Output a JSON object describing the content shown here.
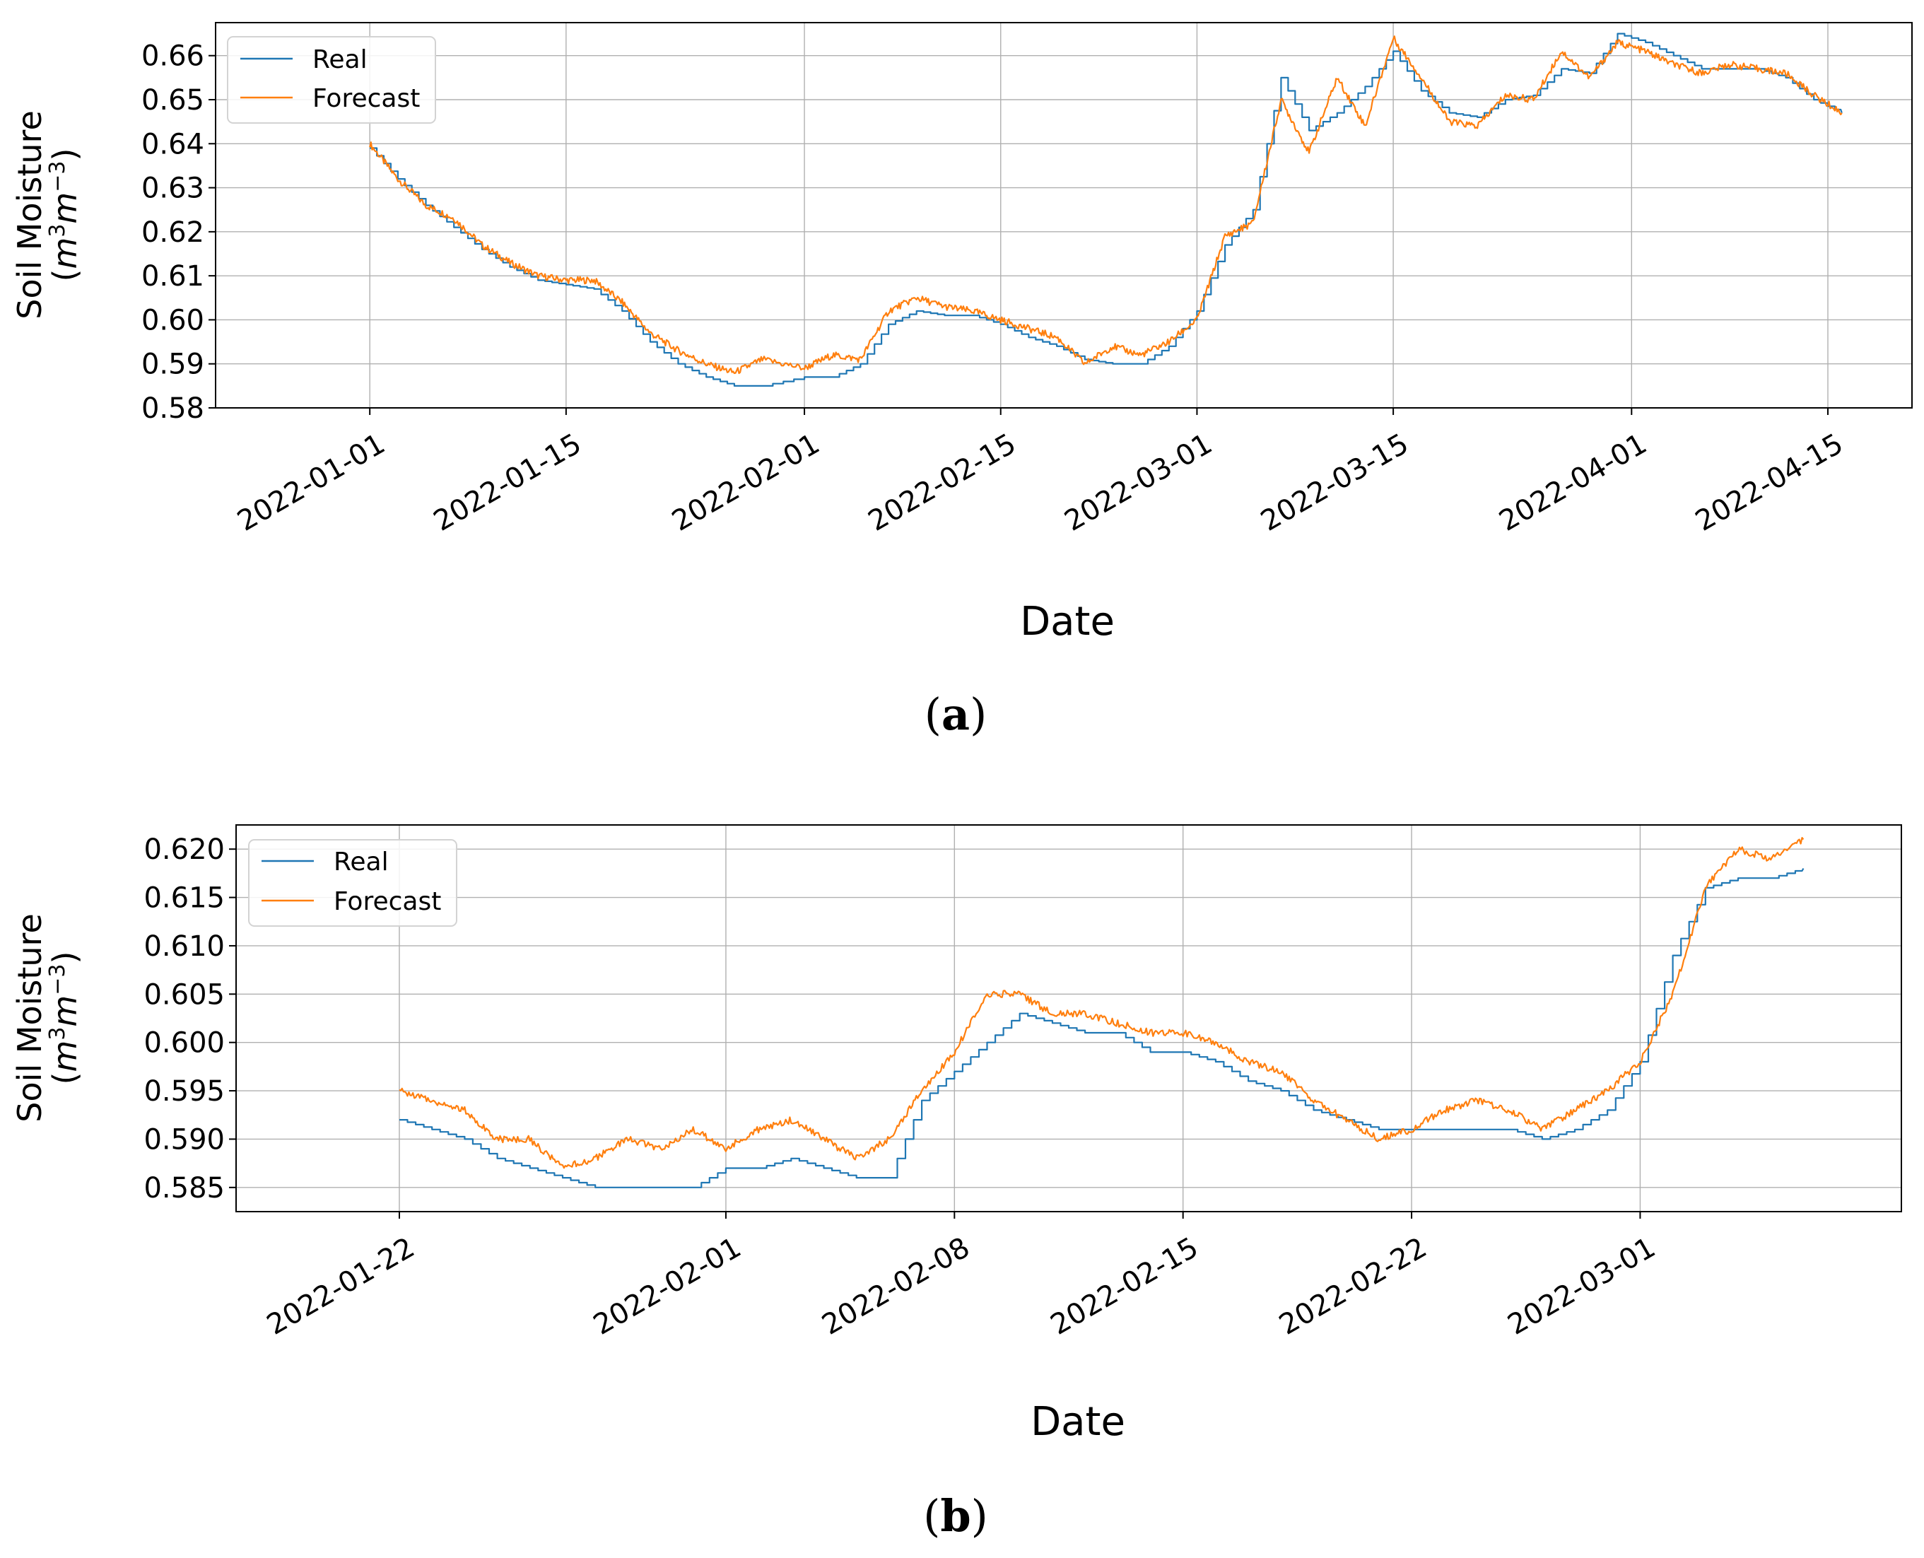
{
  "chart_data": [
    {
      "type": "line",
      "panel_label": "a",
      "xlabel": "Date",
      "ylabel": "Soil Moisture",
      "ylabel_unit": "(m3m−3)",
      "xlim": [
        "2021-12-21",
        "2022-04-21"
      ],
      "ylim": [
        0.58,
        0.6675
      ],
      "x_ticks": [
        "2022-01-01",
        "2022-01-15",
        "2022-02-01",
        "2022-02-15",
        "2022-03-01",
        "2022-03-15",
        "2022-04-01",
        "2022-04-15"
      ],
      "y_ticks": [
        "0.58",
        "0.59",
        "0.60",
        "0.61",
        "0.62",
        "0.63",
        "0.64",
        "0.65",
        "0.66"
      ],
      "legend_position": "upper-left",
      "grid": true,
      "series": [
        {
          "name": "Real",
          "color": "#1f77b4",
          "points": [
            [
              "2022-01-01",
              0.639
            ],
            [
              "2022-01-03",
              0.632
            ],
            [
              "2022-01-05",
              0.626
            ],
            [
              "2022-01-07",
              0.621
            ],
            [
              "2022-01-09",
              0.616
            ],
            [
              "2022-01-11",
              0.612
            ],
            [
              "2022-01-13",
              0.609
            ],
            [
              "2022-01-15",
              0.608
            ],
            [
              "2022-01-17",
              0.607
            ],
            [
              "2022-01-19",
              0.602
            ],
            [
              "2022-01-21",
              0.595
            ],
            [
              "2022-01-23",
              0.59
            ],
            [
              "2022-01-25",
              0.587
            ],
            [
              "2022-01-27",
              0.585
            ],
            [
              "2022-01-29",
              0.585
            ],
            [
              "2022-02-01",
              0.587
            ],
            [
              "2022-02-03",
              0.587
            ],
            [
              "2022-02-05",
              0.59
            ],
            [
              "2022-02-07",
              0.599
            ],
            [
              "2022-02-09",
              0.602
            ],
            [
              "2022-02-11",
              0.601
            ],
            [
              "2022-02-13",
              0.601
            ],
            [
              "2022-02-15",
              0.599
            ],
            [
              "2022-02-17",
              0.596
            ],
            [
              "2022-02-19",
              0.594
            ],
            [
              "2022-02-21",
              0.591
            ],
            [
              "2022-02-23",
              0.59
            ],
            [
              "2022-02-25",
              0.59
            ],
            [
              "2022-02-27",
              0.594
            ],
            [
              "2022-03-01",
              0.602
            ],
            [
              "2022-03-03",
              0.617
            ],
            [
              "2022-03-05",
              0.625
            ],
            [
              "2022-03-07",
              0.655
            ],
            [
              "2022-03-09",
              0.643
            ],
            [
              "2022-03-11",
              0.647
            ],
            [
              "2022-03-13",
              0.653
            ],
            [
              "2022-03-15",
              0.661
            ],
            [
              "2022-03-17",
              0.652
            ],
            [
              "2022-03-19",
              0.647
            ],
            [
              "2022-03-21",
              0.646
            ],
            [
              "2022-03-23",
              0.65
            ],
            [
              "2022-03-25",
              0.651
            ],
            [
              "2022-03-27",
              0.657
            ],
            [
              "2022-03-29",
              0.656
            ],
            [
              "2022-03-31",
              0.665
            ],
            [
              "2022-04-02",
              0.663
            ],
            [
              "2022-04-04",
              0.66
            ],
            [
              "2022-04-06",
              0.657
            ],
            [
              "2022-04-08",
              0.657
            ],
            [
              "2022-04-10",
              0.657
            ],
            [
              "2022-04-12",
              0.655
            ],
            [
              "2022-04-14",
              0.65
            ],
            [
              "2022-04-16",
              0.647
            ]
          ]
        },
        {
          "name": "Forecast",
          "color": "#ff7f0e",
          "points": [
            [
              "2022-01-01",
              0.64
            ],
            [
              "2022-01-03",
              0.632
            ],
            [
              "2022-01-05",
              0.626
            ],
            [
              "2022-01-07",
              0.623
            ],
            [
              "2022-01-09",
              0.617
            ],
            [
              "2022-01-11",
              0.613
            ],
            [
              "2022-01-13",
              0.61
            ],
            [
              "2022-01-15",
              0.609
            ],
            [
              "2022-01-17",
              0.609
            ],
            [
              "2022-01-19",
              0.604
            ],
            [
              "2022-01-21",
              0.597
            ],
            [
              "2022-01-23",
              0.593
            ],
            [
              "2022-01-25",
              0.59
            ],
            [
              "2022-01-27",
              0.588
            ],
            [
              "2022-01-29",
              0.591
            ],
            [
              "2022-02-01",
              0.589
            ],
            [
              "2022-02-03",
              0.592
            ],
            [
              "2022-02-05",
              0.591
            ],
            [
              "2022-02-07",
              0.602
            ],
            [
              "2022-02-09",
              0.605
            ],
            [
              "2022-02-11",
              0.603
            ],
            [
              "2022-02-13",
              0.602
            ],
            [
              "2022-02-15",
              0.6
            ],
            [
              "2022-02-17",
              0.598
            ],
            [
              "2022-02-19",
              0.596
            ],
            [
              "2022-02-21",
              0.59
            ],
            [
              "2022-02-23",
              0.594
            ],
            [
              "2022-02-25",
              0.592
            ],
            [
              "2022-02-27",
              0.595
            ],
            [
              "2022-03-01",
              0.6
            ],
            [
              "2022-03-03",
              0.619
            ],
            [
              "2022-03-05",
              0.622
            ],
            [
              "2022-03-07",
              0.65
            ],
            [
              "2022-03-09",
              0.638
            ],
            [
              "2022-03-11",
              0.655
            ],
            [
              "2022-03-13",
              0.644
            ],
            [
              "2022-03-15",
              0.664
            ],
            [
              "2022-03-17",
              0.655
            ],
            [
              "2022-03-19",
              0.645
            ],
            [
              "2022-03-21",
              0.644
            ],
            [
              "2022-03-23",
              0.651
            ],
            [
              "2022-03-25",
              0.65
            ],
            [
              "2022-03-27",
              0.661
            ],
            [
              "2022-03-29",
              0.655
            ],
            [
              "2022-03-31",
              0.663
            ],
            [
              "2022-04-02",
              0.661
            ],
            [
              "2022-04-04",
              0.658
            ],
            [
              "2022-04-06",
              0.656
            ],
            [
              "2022-04-08",
              0.658
            ],
            [
              "2022-04-10",
              0.657
            ],
            [
              "2022-04-12",
              0.656
            ],
            [
              "2022-04-14",
              0.651
            ],
            [
              "2022-04-16",
              0.647
            ]
          ]
        }
      ]
    },
    {
      "type": "line",
      "panel_label": "b",
      "xlabel": "Date",
      "ylabel": "Soil Moisture",
      "ylabel_unit": "(m3m−3)",
      "xlim": [
        "2022-01-17",
        "2022-03-09"
      ],
      "ylim": [
        0.5825,
        0.6225
      ],
      "x_ticks": [
        "2022-01-22",
        "2022-02-01",
        "2022-02-08",
        "2022-02-15",
        "2022-02-22",
        "2022-03-01"
      ],
      "y_ticks": [
        "0.585",
        "0.590",
        "0.595",
        "0.600",
        "0.605",
        "0.610",
        "0.615",
        "0.620"
      ],
      "legend_position": "upper-left",
      "grid": true,
      "series": [
        {
          "name": "Real",
          "color": "#1f77b4",
          "points": [
            [
              "2022-01-22",
              0.592
            ],
            [
              "2022-01-23",
              0.591
            ],
            [
              "2022-01-24",
              0.59
            ],
            [
              "2022-01-25",
              0.588
            ],
            [
              "2022-01-26",
              0.587
            ],
            [
              "2022-01-27",
              0.586
            ],
            [
              "2022-01-28",
              0.585
            ],
            [
              "2022-01-29",
              0.585
            ],
            [
              "2022-01-30",
              0.585
            ],
            [
              "2022-01-31",
              0.585
            ],
            [
              "2022-02-01",
              0.587
            ],
            [
              "2022-02-02",
              0.587
            ],
            [
              "2022-02-03",
              0.588
            ],
            [
              "2022-02-04",
              0.587
            ],
            [
              "2022-02-05",
              0.586
            ],
            [
              "2022-02-06",
              0.586
            ],
            [
              "2022-02-07",
              0.594
            ],
            [
              "2022-02-08",
              0.597
            ],
            [
              "2022-02-09",
              0.6
            ],
            [
              "2022-02-10",
              0.603
            ],
            [
              "2022-02-11",
              0.602
            ],
            [
              "2022-02-12",
              0.601
            ],
            [
              "2022-02-13",
              0.601
            ],
            [
              "2022-02-14",
              0.599
            ],
            [
              "2022-02-15",
              0.599
            ],
            [
              "2022-02-16",
              0.598
            ],
            [
              "2022-02-17",
              0.596
            ],
            [
              "2022-02-18",
              0.595
            ],
            [
              "2022-02-19",
              0.593
            ],
            [
              "2022-02-20",
              0.592
            ],
            [
              "2022-02-21",
              0.591
            ],
            [
              "2022-02-22",
              0.591
            ],
            [
              "2022-02-23",
              0.591
            ],
            [
              "2022-02-24",
              0.591
            ],
            [
              "2022-02-25",
              0.591
            ],
            [
              "2022-02-26",
              0.59
            ],
            [
              "2022-02-27",
              0.591
            ],
            [
              "2022-02-28",
              0.593
            ],
            [
              "2022-03-01",
              0.598
            ],
            [
              "2022-03-02",
              0.609
            ],
            [
              "2022-03-03",
              0.616
            ],
            [
              "2022-03-04",
              0.617
            ],
            [
              "2022-03-05",
              0.617
            ],
            [
              "2022-03-06",
              0.618
            ]
          ]
        },
        {
          "name": "Forecast",
          "color": "#ff7f0e",
          "points": [
            [
              "2022-01-22",
              0.595
            ],
            [
              "2022-01-23",
              0.594
            ],
            [
              "2022-01-24",
              0.593
            ],
            [
              "2022-01-25",
              0.59
            ],
            [
              "2022-01-26",
              0.59
            ],
            [
              "2022-01-27",
              0.587
            ],
            [
              "2022-01-28",
              0.588
            ],
            [
              "2022-01-29",
              0.59
            ],
            [
              "2022-01-30",
              0.589
            ],
            [
              "2022-01-31",
              0.591
            ],
            [
              "2022-02-01",
              0.589
            ],
            [
              "2022-02-02",
              0.591
            ],
            [
              "2022-02-03",
              0.592
            ],
            [
              "2022-02-04",
              0.59
            ],
            [
              "2022-02-05",
              0.588
            ],
            [
              "2022-02-06",
              0.59
            ],
            [
              "2022-02-07",
              0.595
            ],
            [
              "2022-02-08",
              0.599
            ],
            [
              "2022-02-09",
              0.605
            ],
            [
              "2022-02-10",
              0.605
            ],
            [
              "2022-02-11",
              0.603
            ],
            [
              "2022-02-12",
              0.603
            ],
            [
              "2022-02-13",
              0.602
            ],
            [
              "2022-02-14",
              0.601
            ],
            [
              "2022-02-15",
              0.601
            ],
            [
              "2022-02-16",
              0.6
            ],
            [
              "2022-02-17",
              0.598
            ],
            [
              "2022-02-18",
              0.597
            ],
            [
              "2022-02-19",
              0.594
            ],
            [
              "2022-02-20",
              0.592
            ],
            [
              "2022-02-21",
              0.59
            ],
            [
              "2022-02-22",
              0.591
            ],
            [
              "2022-02-23",
              0.593
            ],
            [
              "2022-02-24",
              0.594
            ],
            [
              "2022-02-25",
              0.593
            ],
            [
              "2022-02-26",
              0.591
            ],
            [
              "2022-02-27",
              0.593
            ],
            [
              "2022-02-28",
              0.595
            ],
            [
              "2022-03-01",
              0.598
            ],
            [
              "2022-03-02",
              0.605
            ],
            [
              "2022-03-03",
              0.616
            ],
            [
              "2022-03-04",
              0.62
            ],
            [
              "2022-03-05",
              0.619
            ],
            [
              "2022-03-06",
              0.621
            ]
          ]
        }
      ]
    }
  ]
}
